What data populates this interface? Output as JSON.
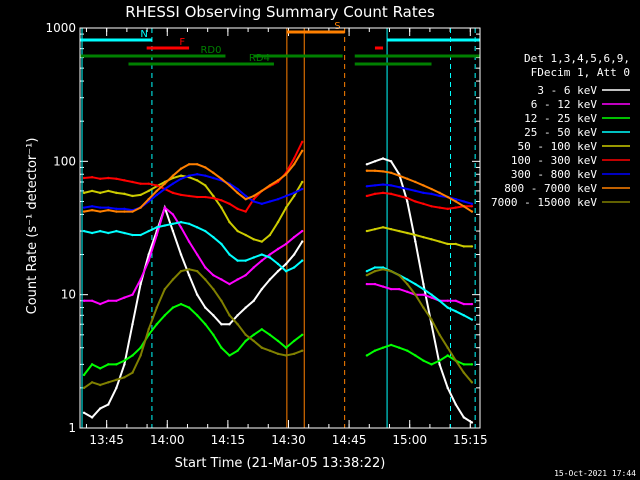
{
  "chart_data": {
    "type": "line",
    "title": "RHESSI Observing Summary Count Rates",
    "xlabel": "Start Time (21-Mar-05 13:38:22)",
    "ylabel": "Count Rate (s⁻¹ detector⁻¹)",
    "x_unit": "minutes after 13:38:22",
    "xlim": [
      0,
      99
    ],
    "ylim": [
      1,
      1000
    ],
    "yscale": "log",
    "x_ticks": [
      {
        "label": "13:45",
        "x": 6.6
      },
      {
        "label": "14:00",
        "x": 21.6
      },
      {
        "label": "14:15",
        "x": 36.6
      },
      {
        "label": "14:30",
        "x": 51.6
      },
      {
        "label": "14:45",
        "x": 66.6
      },
      {
        "label": "15:00",
        "x": 81.6
      },
      {
        "label": "15:15",
        "x": 96.6
      }
    ],
    "y_ticks": [
      {
        "label": "1",
        "y": 1
      },
      {
        "label": "10",
        "y": 10
      },
      {
        "label": "100",
        "y": 100
      },
      {
        "label": "1000",
        "y": 1000
      }
    ],
    "legend_header": [
      "Det 1,3,4,5,6,9,",
      "FDecim 1, Att 0"
    ],
    "legend_position": "right",
    "grid": false,
    "timestamp": "15-Oct-2021 17:44",
    "series": [
      {
        "name": "3 - 6 keV",
        "color": "#ffffff",
        "x": [
          1,
          3,
          5,
          7,
          9,
          11,
          13,
          15,
          17,
          19,
          21,
          23,
          25,
          27,
          29,
          31,
          33,
          35,
          37,
          39,
          41,
          43,
          45,
          47,
          49,
          51,
          53,
          55,
          71,
          73,
          75,
          77,
          79,
          81,
          83,
          85,
          87,
          89,
          91,
          93,
          95,
          97
        ],
        "y": [
          1.3,
          1.2,
          1.4,
          1.5,
          2,
          3,
          6,
          12,
          20,
          30,
          45,
          30,
          20,
          14,
          10,
          8,
          7,
          6,
          6,
          7,
          8,
          9,
          11,
          13,
          15,
          17,
          20,
          25,
          95,
          100,
          105,
          100,
          80,
          50,
          25,
          12,
          6,
          3,
          2,
          1.5,
          1.2,
          1.1
        ]
      },
      {
        "name": "6 - 12 keV",
        "color": "#ff00ff",
        "x": [
          1,
          3,
          5,
          7,
          9,
          11,
          13,
          15,
          17,
          19,
          21,
          23,
          25,
          27,
          29,
          31,
          33,
          35,
          37,
          39,
          41,
          43,
          45,
          47,
          49,
          51,
          53,
          55,
          71,
          73,
          75,
          77,
          79,
          81,
          83,
          85,
          87,
          89,
          91,
          93,
          95,
          97
        ],
        "y": [
          9,
          9,
          8.5,
          9,
          9,
          9.5,
          10,
          13,
          18,
          28,
          45,
          40,
          32,
          25,
          20,
          16,
          14,
          13,
          12,
          13,
          14,
          16,
          18,
          20,
          22,
          24,
          27,
          30,
          12,
          12,
          11.5,
          11,
          11,
          10.5,
          10,
          10,
          9.5,
          9,
          9,
          9,
          8.5,
          8.5
        ]
      },
      {
        "name": "12 - 25 keV",
        "color": "#00ff00",
        "x": [
          1,
          3,
          5,
          7,
          9,
          11,
          13,
          15,
          17,
          19,
          21,
          23,
          25,
          27,
          29,
          31,
          33,
          35,
          37,
          39,
          41,
          43,
          45,
          47,
          49,
          51,
          53,
          55,
          71,
          73,
          75,
          77,
          79,
          81,
          83,
          85,
          87,
          89,
          91,
          93,
          95,
          97
        ],
        "y": [
          2.5,
          3,
          2.8,
          3,
          3,
          3.2,
          3.5,
          4,
          5,
          6,
          7,
          8,
          8.5,
          8,
          7,
          6,
          5,
          4,
          3.5,
          3.8,
          4.5,
          5,
          5.5,
          5,
          4.5,
          4,
          4.5,
          5,
          3.5,
          3.8,
          4,
          4.2,
          4,
          3.8,
          3.5,
          3.2,
          3,
          3.2,
          3.5,
          3.2,
          3,
          3
        ]
      },
      {
        "name": "25 - 50 keV",
        "color": "#00ffff",
        "x": [
          1,
          3,
          5,
          7,
          9,
          11,
          13,
          15,
          17,
          19,
          21,
          23,
          25,
          27,
          29,
          31,
          33,
          35,
          37,
          39,
          41,
          43,
          45,
          47,
          49,
          51,
          53,
          55,
          71,
          73,
          75,
          77,
          79,
          81,
          83,
          85,
          87,
          89,
          91,
          93,
          95,
          97
        ],
        "y": [
          30,
          29,
          30,
          29,
          30,
          29,
          28,
          28,
          30,
          32,
          33,
          34,
          35,
          34,
          32,
          30,
          27,
          24,
          20,
          18,
          18,
          19,
          20,
          19,
          17,
          15,
          16,
          18,
          15,
          16,
          16,
          15,
          14,
          13,
          12,
          11,
          10,
          9,
          8,
          7.5,
          7,
          6.5
        ]
      },
      {
        "name": "50 - 100 keV",
        "color": "#cccc00",
        "x": [
          1,
          3,
          5,
          7,
          9,
          11,
          13,
          15,
          17,
          19,
          21,
          23,
          25,
          27,
          29,
          31,
          33,
          35,
          37,
          39,
          41,
          43,
          45,
          47,
          49,
          51,
          53,
          55,
          71,
          73,
          75,
          77,
          79,
          81,
          83,
          85,
          87,
          89,
          91,
          93,
          95,
          97
        ],
        "y": [
          58,
          60,
          58,
          60,
          58,
          57,
          55,
          56,
          60,
          65,
          70,
          75,
          78,
          76,
          72,
          66,
          55,
          45,
          35,
          30,
          28,
          26,
          25,
          28,
          35,
          45,
          55,
          70,
          30,
          31,
          32,
          31,
          30,
          29,
          28,
          27,
          26,
          25,
          24,
          24,
          23,
          23
        ]
      },
      {
        "name": "100 - 300 keV",
        "color": "#ff0000",
        "x": [
          1,
          3,
          5,
          7,
          9,
          11,
          13,
          15,
          17,
          19,
          21,
          23,
          25,
          27,
          29,
          31,
          33,
          35,
          37,
          39,
          41,
          43,
          45,
          47,
          49,
          51,
          53,
          55,
          71,
          73,
          75,
          77,
          79,
          81,
          83,
          85,
          87,
          89,
          91,
          93,
          95,
          97
        ],
        "y": [
          75,
          76,
          74,
          75,
          74,
          72,
          70,
          68,
          68,
          66,
          62,
          58,
          56,
          55,
          54,
          54,
          53,
          51,
          48,
          44,
          42,
          52,
          60,
          65,
          70,
          82,
          105,
          140,
          55,
          57,
          58,
          57,
          55,
          53,
          50,
          48,
          46,
          45,
          44,
          45,
          46,
          46
        ]
      },
      {
        "name": "300 - 800 keV",
        "color": "#0000ff",
        "x": [
          1,
          3,
          5,
          7,
          9,
          11,
          13,
          15,
          17,
          19,
          21,
          23,
          25,
          27,
          29,
          31,
          33,
          35,
          37,
          39,
          41,
          43,
          45,
          47,
          49,
          51,
          53,
          55,
          71,
          73,
          75,
          77,
          79,
          81,
          83,
          85,
          87,
          89,
          91,
          93,
          95,
          97
        ],
        "y": [
          45,
          46,
          45,
          45,
          44,
          44,
          43,
          45,
          50,
          56,
          62,
          68,
          74,
          78,
          80,
          78,
          75,
          72,
          68,
          62,
          55,
          50,
          48,
          50,
          52,
          55,
          58,
          62,
          65,
          66,
          67,
          66,
          64,
          62,
          60,
          58,
          57,
          55,
          54,
          52,
          50,
          48
        ]
      },
      {
        "name": "800 - 7000 keV",
        "color": "#ff8000",
        "x": [
          1,
          3,
          5,
          7,
          9,
          11,
          13,
          15,
          17,
          19,
          21,
          23,
          25,
          27,
          29,
          31,
          33,
          35,
          37,
          39,
          41,
          43,
          45,
          47,
          49,
          51,
          53,
          55,
          71,
          73,
          75,
          77,
          79,
          81,
          83,
          85,
          87,
          89,
          91,
          93,
          95,
          97
        ],
        "y": [
          42,
          43,
          42,
          43,
          42,
          42,
          42,
          45,
          52,
          60,
          68,
          78,
          88,
          95,
          95,
          90,
          82,
          74,
          66,
          58,
          52,
          55,
          60,
          66,
          72,
          80,
          95,
          120,
          85,
          85,
          84,
          82,
          78,
          74,
          70,
          66,
          62,
          58,
          54,
          50,
          46,
          42
        ]
      },
      {
        "name": "7000 - 15000 keV",
        "color": "#808000",
        "x": [
          1,
          3,
          5,
          7,
          9,
          11,
          13,
          15,
          17,
          19,
          21,
          23,
          25,
          27,
          29,
          31,
          33,
          35,
          37,
          39,
          41,
          43,
          45,
          47,
          49,
          51,
          53,
          55,
          71,
          73,
          75,
          77,
          79,
          81,
          83,
          85,
          87,
          89,
          91,
          93,
          95,
          97
        ],
        "y": [
          2,
          2.2,
          2.1,
          2.2,
          2.3,
          2.4,
          2.6,
          3.5,
          5.5,
          8,
          11,
          13,
          15,
          15.5,
          15,
          13,
          11,
          9,
          7,
          6,
          5,
          4.5,
          4,
          3.8,
          3.6,
          3.5,
          3.6,
          3.8,
          14,
          15,
          15.5,
          15,
          14,
          12,
          10,
          8,
          6.5,
          5,
          4,
          3.2,
          2.6,
          2.2
        ]
      }
    ],
    "markers": [
      {
        "label": "S",
        "x": 51.2,
        "color": "#ff8000",
        "style": "solid"
      },
      {
        "label": "",
        "x": 65.5,
        "color": "#ff8000",
        "style": "dashed"
      },
      {
        "label": "",
        "x": 55.5,
        "color": "#ff8000",
        "style": "solid"
      },
      {
        "label": "",
        "x": 0.5,
        "color": "#00ffff",
        "style": "solid"
      },
      {
        "label": "",
        "x": 17.8,
        "color": "#00ffff",
        "style": "dashed"
      },
      {
        "label": "",
        "x": 76,
        "color": "#00ffff",
        "style": "solid"
      },
      {
        "label": "",
        "x": 91.7,
        "color": "#00ffff",
        "style": "dashed"
      },
      {
        "label": "",
        "x": 97.8,
        "color": "#00ffff",
        "style": "dashed"
      }
    ],
    "state_bars": [
      {
        "label": "N",
        "color": "#00ffff",
        "level": 4,
        "segments": [
          [
            0,
            17.8
          ],
          [
            76,
            99
          ]
        ]
      },
      {
        "label": "F",
        "color": "#ff0000",
        "level": 3,
        "segments": [
          [
            16.5,
            27
          ],
          [
            73,
            75
          ]
        ]
      },
      {
        "label": "S",
        "color": "#ff8000",
        "level": 5,
        "segments": [
          [
            51.2,
            65.5
          ]
        ]
      },
      {
        "label": "RD0",
        "color": "#008000",
        "level": 2,
        "segments": [
          [
            0,
            36
          ],
          [
            43,
            65
          ],
          [
            68,
            99
          ]
        ]
      },
      {
        "label": "RD4",
        "color": "#008000",
        "level": 1,
        "segments": [
          [
            12,
            48
          ],
          [
            68,
            87
          ]
        ]
      }
    ]
  }
}
